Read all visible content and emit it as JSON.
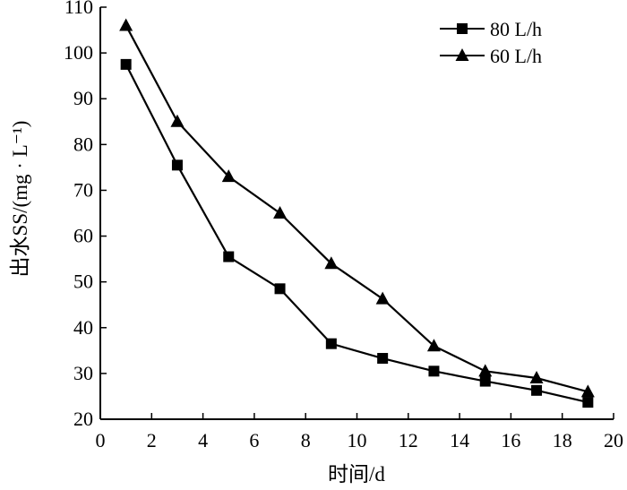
{
  "chart_data": {
    "type": "line",
    "title": "",
    "xlabel": "时间/d",
    "ylabel": "出水SS/(mg · L⁻¹)",
    "xlim": [
      0,
      20
    ],
    "ylim": [
      20,
      110
    ],
    "xticks": [
      0,
      2,
      4,
      6,
      8,
      10,
      12,
      14,
      16,
      18,
      20
    ],
    "yticks": [
      20,
      30,
      40,
      50,
      60,
      70,
      80,
      90,
      100,
      110
    ],
    "grid": false,
    "legend_position": "top-right",
    "series": [
      {
        "name": "80 L/h",
        "marker": "square",
        "color": "#000000",
        "x": [
          1,
          3,
          5,
          7,
          9,
          11,
          13,
          15,
          17,
          19
        ],
        "y": [
          97.5,
          75.5,
          55.5,
          48.5,
          36.5,
          33.3,
          30.5,
          28.3,
          26.3,
          23.7
        ]
      },
      {
        "name": "60 L/h",
        "marker": "triangle",
        "color": "#000000",
        "x": [
          1,
          3,
          5,
          7,
          9,
          11,
          13,
          15,
          17,
          19
        ],
        "y": [
          106,
          85,
          73,
          65,
          54,
          46.3,
          36,
          30.5,
          29,
          26
        ]
      }
    ]
  }
}
